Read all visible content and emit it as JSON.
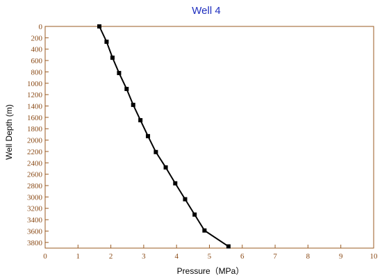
{
  "chart_data": {
    "type": "line",
    "title": "Well 4",
    "xlabel": "Pressure（MPa）",
    "ylabel": "Well Depth (m)",
    "xlim": [
      0,
      10
    ],
    "ylim": [
      0,
      3900
    ],
    "y_inverted": true,
    "grid": false,
    "x_ticks": [
      0,
      1,
      2,
      3,
      4,
      5,
      6,
      7,
      8,
      9,
      10
    ],
    "y_ticks": [
      0,
      200,
      400,
      600,
      800,
      1000,
      1200,
      1400,
      1600,
      1800,
      2000,
      2200,
      2400,
      2600,
      2800,
      3000,
      3200,
      3400,
      3600,
      3800
    ],
    "colors": {
      "frame": "#9a5a22",
      "tick_text": "#8a4a16",
      "title": "#1f2fbf",
      "line": "#000000"
    },
    "series": [
      {
        "marker": "square",
        "points": [
          {
            "x": 1.65,
            "y": 0
          },
          {
            "x": 1.87,
            "y": 270
          },
          {
            "x": 2.05,
            "y": 550
          },
          {
            "x": 2.25,
            "y": 820
          },
          {
            "x": 2.48,
            "y": 1100
          },
          {
            "x": 2.68,
            "y": 1380
          },
          {
            "x": 2.9,
            "y": 1650
          },
          {
            "x": 3.13,
            "y": 1930
          },
          {
            "x": 3.37,
            "y": 2210
          },
          {
            "x": 3.67,
            "y": 2480
          },
          {
            "x": 3.96,
            "y": 2760
          },
          {
            "x": 4.26,
            "y": 3040
          },
          {
            "x": 4.55,
            "y": 3310
          },
          {
            "x": 4.85,
            "y": 3590
          },
          {
            "x": 5.58,
            "y": 3870
          }
        ]
      }
    ]
  }
}
